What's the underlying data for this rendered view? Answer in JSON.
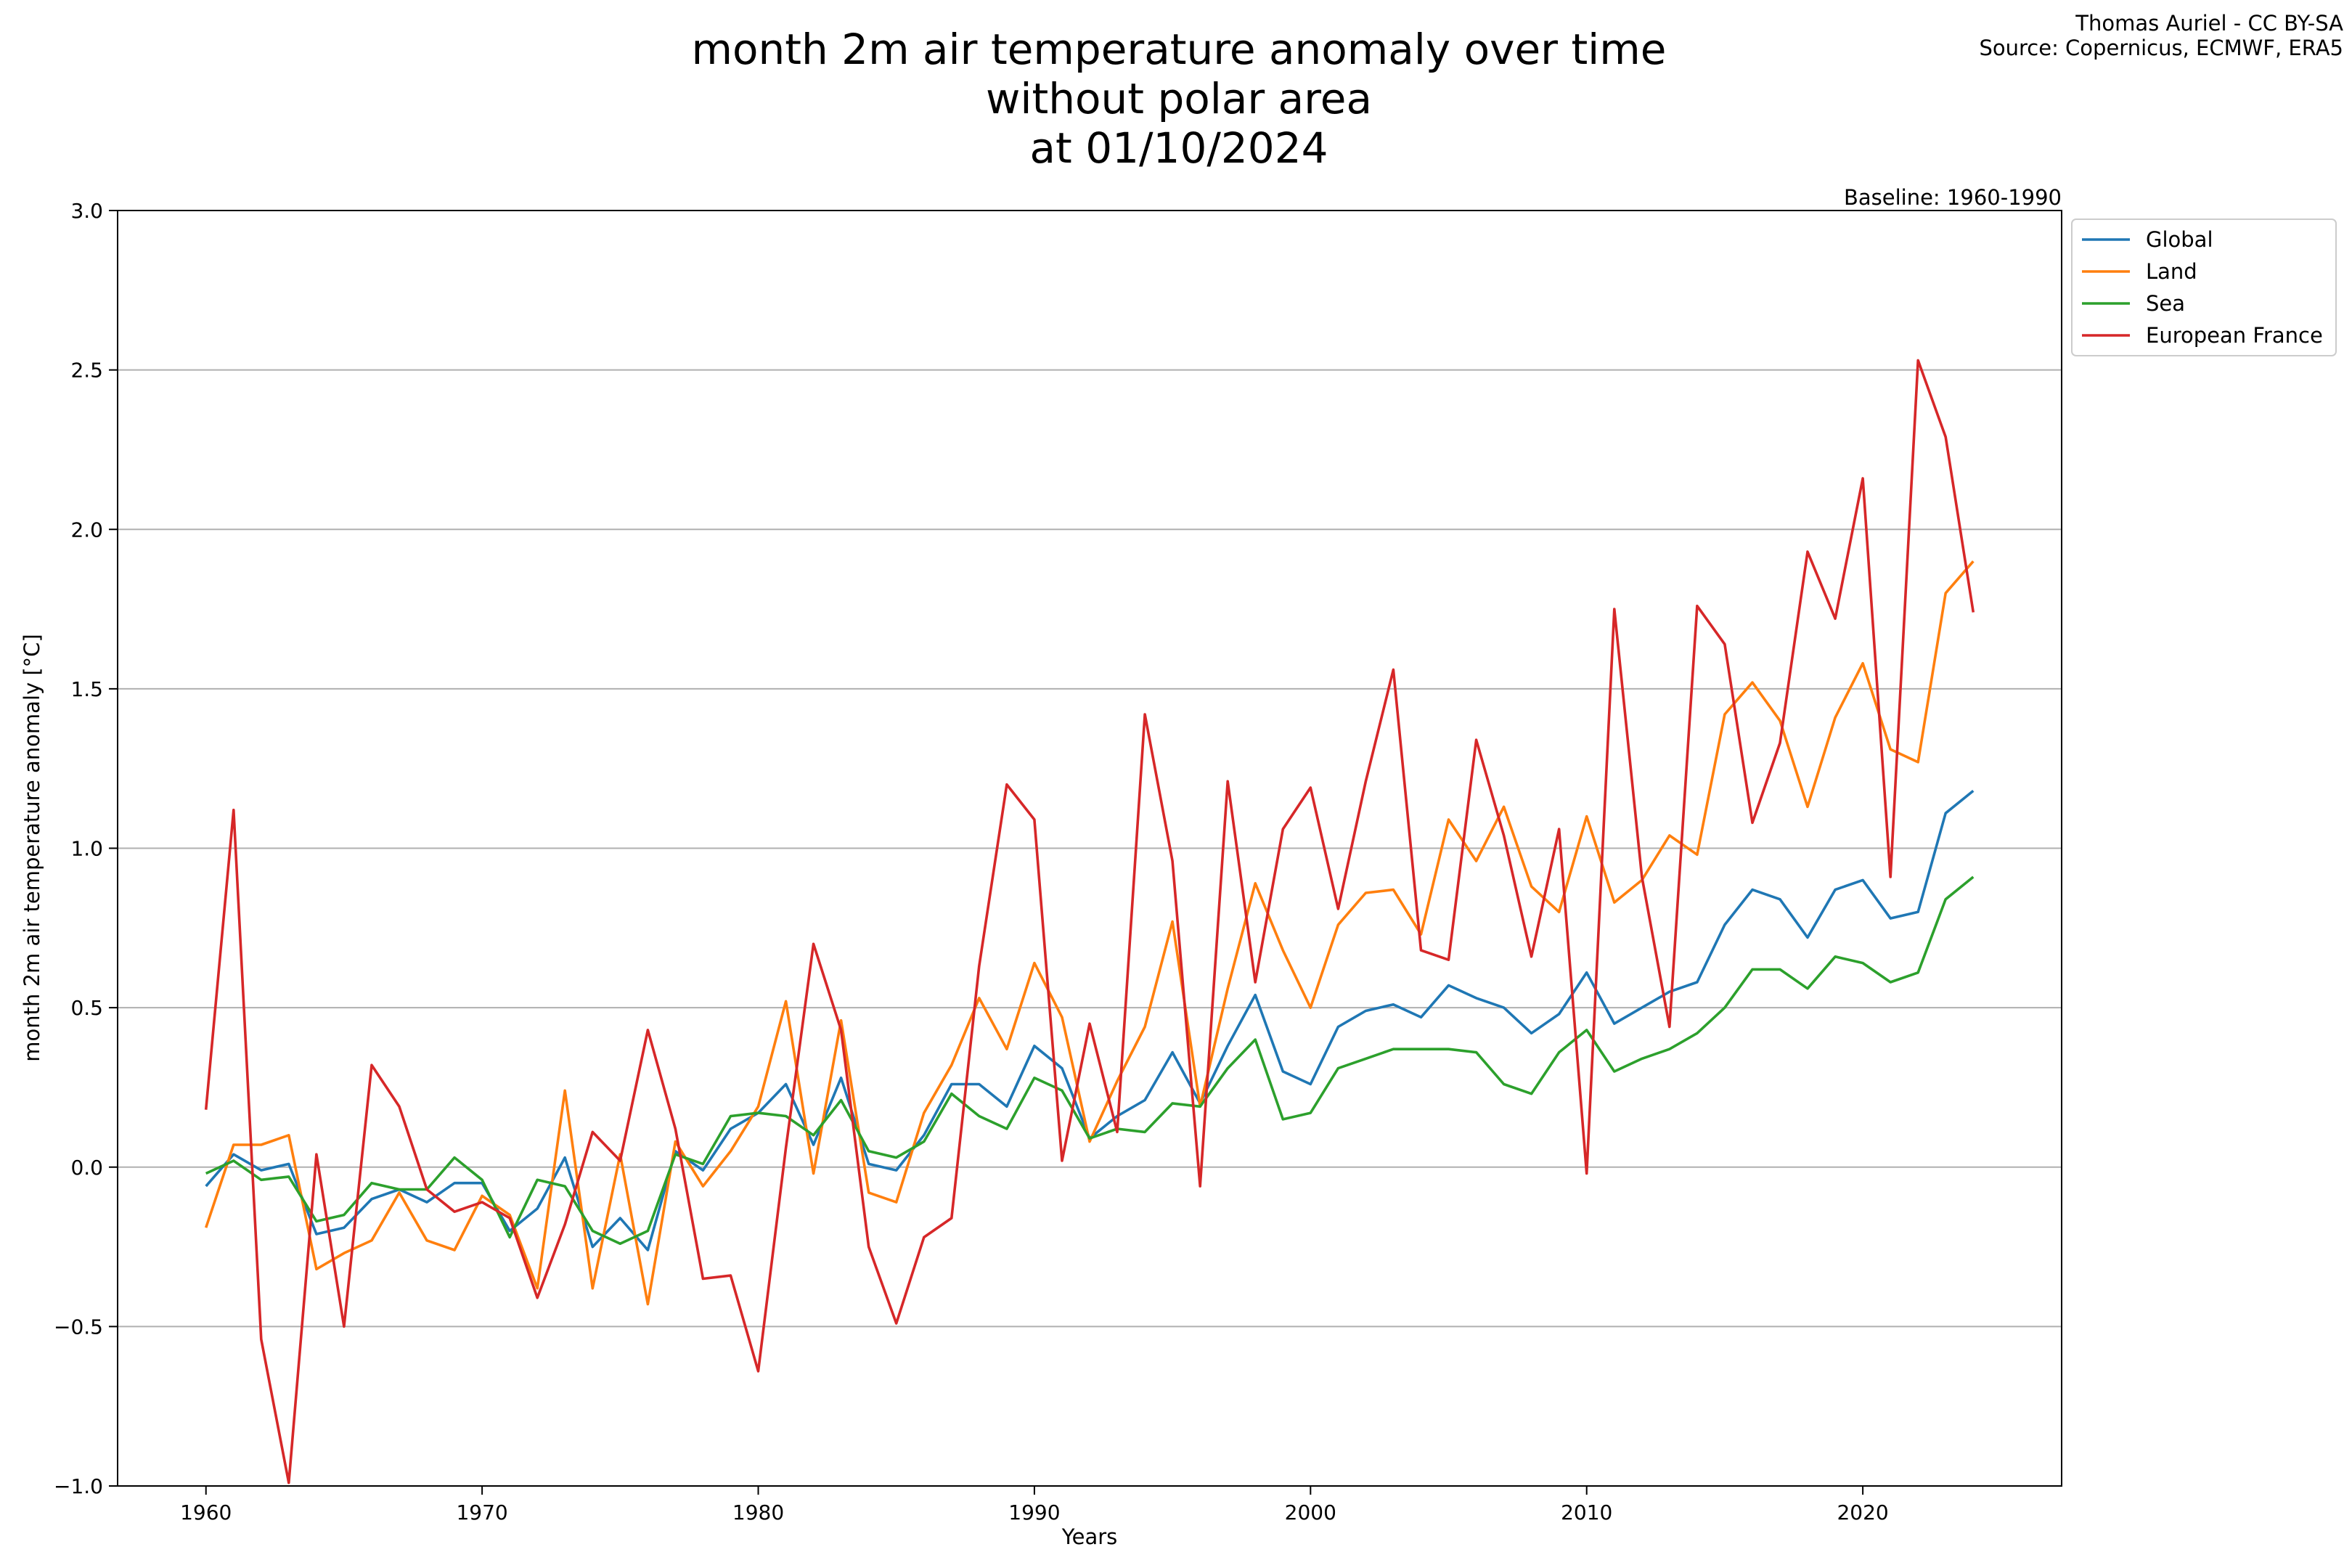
{
  "chart_data": {
    "type": "line",
    "title_lines": [
      "month 2m air temperature anomaly over time",
      "without polar area",
      "at 01/10/2024"
    ],
    "credits": [
      "Thomas Auriel - CC BY-SA",
      "Source: Copernicus, ECMWF, ERA5"
    ],
    "baseline_label": "Baseline: 1960-1990",
    "xlabel": "Years",
    "ylabel": "month 2m air temperature anomaly [°C]",
    "xlim": [
      1956.8,
      2027.2
    ],
    "ylim": [
      -1.0,
      3.0
    ],
    "xticks": [
      1960,
      1970,
      1980,
      1990,
      2000,
      2010,
      2020
    ],
    "xtick_labels": [
      "1960",
      "1970",
      "1980",
      "1990",
      "2000",
      "2010",
      "2020"
    ],
    "yticks": [
      -1.0,
      -0.5,
      0.0,
      0.5,
      1.0,
      1.5,
      2.0,
      2.5,
      3.0
    ],
    "ytick_labels": [
      "−1.0",
      "−0.5",
      "0.0",
      "0.5",
      "1.0",
      "1.5",
      "2.0",
      "2.5",
      "3.0"
    ],
    "grid": "horizontal",
    "legend_position": "outside top-right",
    "x": [
      1960,
      1961,
      1962,
      1963,
      1964,
      1965,
      1966,
      1967,
      1968,
      1969,
      1970,
      1971,
      1972,
      1973,
      1974,
      1975,
      1976,
      1977,
      1978,
      1979,
      1980,
      1981,
      1982,
      1983,
      1984,
      1985,
      1986,
      1987,
      1988,
      1989,
      1990,
      1991,
      1992,
      1993,
      1994,
      1995,
      1996,
      1997,
      1998,
      1999,
      2000,
      2001,
      2002,
      2003,
      2004,
      2005,
      2006,
      2007,
      2008,
      2009,
      2010,
      2011,
      2012,
      2013,
      2014,
      2015,
      2016,
      2017,
      2018,
      2019,
      2020,
      2021,
      2022,
      2023,
      2024
    ],
    "series": [
      {
        "name": "Global",
        "color": "#1f77b4",
        "values": [
          -0.06,
          0.04,
          -0.01,
          0.01,
          -0.21,
          -0.19,
          -0.1,
          -0.07,
          -0.11,
          -0.05,
          -0.05,
          -0.2,
          -0.13,
          0.03,
          -0.25,
          -0.16,
          -0.26,
          0.05,
          -0.01,
          0.12,
          0.17,
          0.26,
          0.07,
          0.28,
          0.01,
          -0.01,
          0.1,
          0.26,
          0.26,
          0.19,
          0.38,
          0.31,
          0.09,
          0.16,
          0.21,
          0.36,
          0.2,
          0.38,
          0.54,
          0.3,
          0.26,
          0.44,
          0.49,
          0.51,
          0.47,
          0.57,
          0.53,
          0.5,
          0.42,
          0.48,
          0.61,
          0.45,
          0.5,
          0.55,
          0.58,
          0.76,
          0.87,
          0.84,
          0.72,
          0.87,
          0.9,
          0.78,
          0.8,
          1.11,
          1.18
        ]
      },
      {
        "name": "Land",
        "color": "#ff7f0e",
        "values": [
          -0.19,
          0.07,
          0.07,
          0.1,
          -0.32,
          -0.27,
          -0.23,
          -0.08,
          -0.23,
          -0.26,
          -0.09,
          -0.15,
          -0.38,
          0.24,
          -0.38,
          0.04,
          -0.43,
          0.08,
          -0.06,
          0.05,
          0.19,
          0.52,
          -0.02,
          0.46,
          -0.08,
          -0.11,
          0.17,
          0.32,
          0.53,
          0.37,
          0.64,
          0.47,
          0.08,
          0.27,
          0.44,
          0.77,
          0.19,
          0.56,
          0.89,
          0.68,
          0.5,
          0.76,
          0.86,
          0.87,
          0.73,
          1.09,
          0.96,
          1.13,
          0.88,
          0.8,
          1.1,
          0.83,
          0.9,
          1.04,
          0.98,
          1.42,
          1.52,
          1.4,
          1.13,
          1.41,
          1.58,
          1.31,
          1.27,
          1.8,
          1.9
        ]
      },
      {
        "name": "Sea",
        "color": "#2ca02c",
        "values": [
          -0.02,
          0.02,
          -0.04,
          -0.03,
          -0.17,
          -0.15,
          -0.05,
          -0.07,
          -0.07,
          0.03,
          -0.04,
          -0.22,
          -0.04,
          -0.06,
          -0.2,
          -0.24,
          -0.2,
          0.04,
          0.01,
          0.16,
          0.17,
          0.16,
          0.1,
          0.21,
          0.05,
          0.03,
          0.08,
          0.23,
          0.16,
          0.12,
          0.28,
          0.24,
          0.09,
          0.12,
          0.11,
          0.2,
          0.19,
          0.31,
          0.4,
          0.15,
          0.17,
          0.31,
          0.34,
          0.37,
          0.37,
          0.37,
          0.36,
          0.26,
          0.23,
          0.36,
          0.43,
          0.3,
          0.34,
          0.37,
          0.42,
          0.5,
          0.62,
          0.62,
          0.56,
          0.66,
          0.64,
          0.58,
          0.61,
          0.84,
          0.91
        ]
      },
      {
        "name": "European France",
        "color": "#d62728",
        "values": [
          0.18,
          1.12,
          -0.54,
          -0.99,
          0.04,
          -0.5,
          0.32,
          0.19,
          -0.07,
          -0.14,
          -0.11,
          -0.16,
          -0.41,
          -0.18,
          0.11,
          0.02,
          0.43,
          0.12,
          -0.35,
          -0.34,
          -0.64,
          0.06,
          0.7,
          0.43,
          -0.25,
          -0.49,
          -0.22,
          -0.16,
          0.63,
          1.2,
          1.09,
          0.02,
          0.45,
          0.11,
          1.42,
          0.96,
          -0.06,
          1.21,
          0.58,
          1.06,
          1.19,
          0.81,
          1.21,
          1.56,
          0.68,
          0.65,
          1.34,
          1.04,
          0.66,
          1.06,
          -0.02,
          1.75,
          0.91,
          0.44,
          1.76,
          1.64,
          1.08,
          1.33,
          1.93,
          1.72,
          2.16,
          0.91,
          2.53,
          2.29,
          1.74
        ]
      }
    ]
  }
}
